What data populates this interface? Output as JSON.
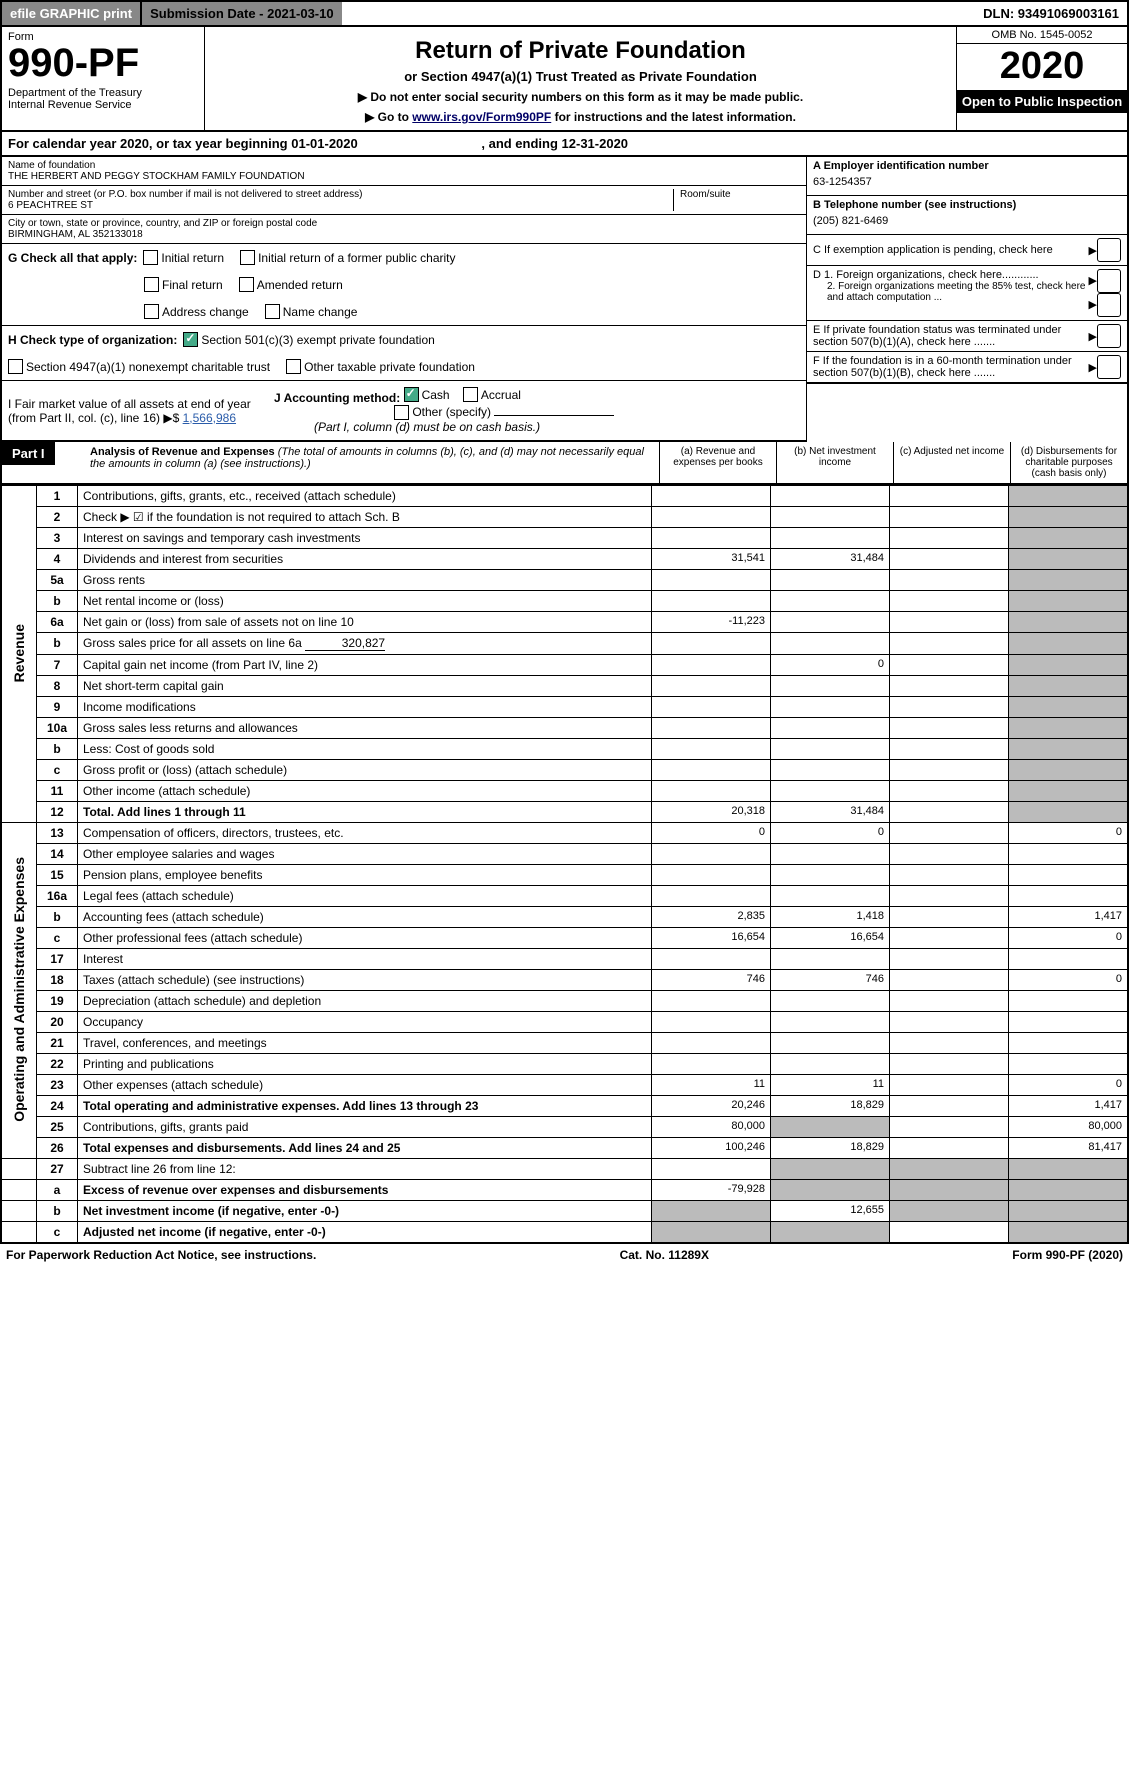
{
  "top": {
    "efile": "efile GRAPHIC print",
    "sub_label": "Submission Date - 2021-03-10",
    "dln": "DLN: 93491069003161"
  },
  "header": {
    "form": "Form",
    "formnum": "990-PF",
    "dept": "Department of the Treasury\nInternal Revenue Service",
    "title": "Return of Private Foundation",
    "subtitle": "or Section 4947(a)(1) Trust Treated as Private Foundation",
    "note1": "▶ Do not enter social security numbers on this form as it may be made public.",
    "note2_pre": "▶ Go to ",
    "note2_link": "www.irs.gov/Form990PF",
    "note2_post": " for instructions and the latest information.",
    "omb": "OMB No. 1545-0052",
    "year": "2020",
    "open": "Open to Public Inspection"
  },
  "cal": {
    "text_pre": "For calendar year 2020, or tax year beginning ",
    "begin": "01-01-2020",
    "mid": " , and ending ",
    "end": "12-31-2020"
  },
  "info": {
    "name_lbl": "Name of foundation",
    "name": "THE HERBERT AND PEGGY STOCKHAM FAMILY FOUNDATION",
    "addr_lbl": "Number and street (or P.O. box number if mail is not delivered to street address)",
    "addr": "6 PEACHTREE ST",
    "room_lbl": "Room/suite",
    "city_lbl": "City or town, state or province, country, and ZIP or foreign postal code",
    "city": "BIRMINGHAM, AL  352133018",
    "ein_lbl": "A Employer identification number",
    "ein": "63-1254357",
    "tel_lbl": "B Telephone number (see instructions)",
    "tel": "(205) 821-6469",
    "c": "C If exemption application is pending, check here",
    "d1": "D 1. Foreign organizations, check here............",
    "d2": "2. Foreign organizations meeting the 85% test, check here and attach computation ...",
    "e": "E  If private foundation status was terminated under section 507(b)(1)(A), check here .......",
    "f": "F  If the foundation is in a 60-month termination under section 507(b)(1)(B), check here .......",
    "g": "G Check all that apply:",
    "g_opts": [
      "Initial return",
      "Initial return of a former public charity",
      "Final return",
      "Amended return",
      "Address change",
      "Name change"
    ],
    "h": "H Check type of organization:",
    "h_opts": [
      "Section 501(c)(3) exempt private foundation",
      "Section 4947(a)(1) nonexempt charitable trust",
      "Other taxable private foundation"
    ],
    "i": "I Fair market value of all assets at end of year (from Part II, col. (c), line 16)",
    "i_val": "1,566,986",
    "j": "J Accounting method:",
    "j_opts": [
      "Cash",
      "Accrual",
      "Other (specify)"
    ],
    "j_note": "(Part I, column (d) must be on cash basis.)"
  },
  "part1": {
    "label": "Part I",
    "title": "Analysis of Revenue and Expenses",
    "title_note": "(The total of amounts in columns (b), (c), and (d) may not necessarily equal the amounts in column (a) (see instructions).)",
    "cols": [
      "(a)   Revenue and expenses per books",
      "(b)  Net investment income",
      "(c)  Adjusted net income",
      "(d)  Disbursements for charitable purposes (cash basis only)"
    ]
  },
  "rows": [
    {
      "n": "1",
      "d": "Contributions, gifts, grants, etc., received (attach schedule)"
    },
    {
      "n": "2",
      "d": "Check ▶ ☑ if the foundation is not required to attach Sch. B",
      "note": true
    },
    {
      "n": "3",
      "d": "Interest on savings and temporary cash investments"
    },
    {
      "n": "4",
      "d": "Dividends and interest from securities",
      "a": "31,541",
      "b": "31,484"
    },
    {
      "n": "5a",
      "d": "Gross rents"
    },
    {
      "n": "b",
      "d": "Net rental income or (loss)"
    },
    {
      "n": "6a",
      "d": "Net gain or (loss) from sale of assets not on line 10",
      "a": "-11,223"
    },
    {
      "n": "b",
      "d": "Gross sales price for all assets on line 6a",
      "inline": "320,827"
    },
    {
      "n": "7",
      "d": "Capital gain net income (from Part IV, line 2)",
      "b": "0"
    },
    {
      "n": "8",
      "d": "Net short-term capital gain"
    },
    {
      "n": "9",
      "d": "Income modifications"
    },
    {
      "n": "10a",
      "d": "Gross sales less returns and allowances"
    },
    {
      "n": "b",
      "d": "Less: Cost of goods sold"
    },
    {
      "n": "c",
      "d": "Gross profit or (loss) (attach schedule)"
    },
    {
      "n": "11",
      "d": "Other income (attach schedule)"
    },
    {
      "n": "12",
      "d": "Total. Add lines 1 through 11",
      "bold": true,
      "a": "20,318",
      "b": "31,484"
    }
  ],
  "exp_rows": [
    {
      "n": "13",
      "d": "Compensation of officers, directors, trustees, etc.",
      "a": "0",
      "b": "0",
      "dd": "0"
    },
    {
      "n": "14",
      "d": "Other employee salaries and wages"
    },
    {
      "n": "15",
      "d": "Pension plans, employee benefits"
    },
    {
      "n": "16a",
      "d": "Legal fees (attach schedule)"
    },
    {
      "n": "b",
      "d": "Accounting fees (attach schedule)",
      "a": "2,835",
      "b": "1,418",
      "dd": "1,417"
    },
    {
      "n": "c",
      "d": "Other professional fees (attach schedule)",
      "a": "16,654",
      "b": "16,654",
      "dd": "0"
    },
    {
      "n": "17",
      "d": "Interest"
    },
    {
      "n": "18",
      "d": "Taxes (attach schedule) (see instructions)",
      "a": "746",
      "b": "746",
      "dd": "0"
    },
    {
      "n": "19",
      "d": "Depreciation (attach schedule) and depletion"
    },
    {
      "n": "20",
      "d": "Occupancy"
    },
    {
      "n": "21",
      "d": "Travel, conferences, and meetings"
    },
    {
      "n": "22",
      "d": "Printing and publications"
    },
    {
      "n": "23",
      "d": "Other expenses (attach schedule)",
      "a": "11",
      "b": "11",
      "dd": "0"
    },
    {
      "n": "24",
      "d": "Total operating and administrative expenses. Add lines 13 through 23",
      "bold": true,
      "a": "20,246",
      "b": "18,829",
      "dd": "1,417"
    },
    {
      "n": "25",
      "d": "Contributions, gifts, grants paid",
      "a": "80,000",
      "dd": "80,000"
    },
    {
      "n": "26",
      "d": "Total expenses and disbursements. Add lines 24 and 25",
      "bold": true,
      "a": "100,246",
      "b": "18,829",
      "dd": "81,417"
    }
  ],
  "sub_rows": [
    {
      "n": "27",
      "d": "Subtract line 26 from line 12:"
    },
    {
      "n": "a",
      "d": "Excess of revenue over expenses and disbursements",
      "bold": true,
      "a": "-79,928"
    },
    {
      "n": "b",
      "d": "Net investment income (if negative, enter -0-)",
      "bold": true,
      "b": "12,655"
    },
    {
      "n": "c",
      "d": "Adjusted net income (if negative, enter -0-)",
      "bold": true
    }
  ],
  "side": {
    "rev": "Revenue",
    "exp": "Operating and Administrative Expenses"
  },
  "footer": {
    "left": "For Paperwork Reduction Act Notice, see instructions.",
    "mid": "Cat. No. 11289X",
    "right": "Form 990-PF (2020)"
  }
}
